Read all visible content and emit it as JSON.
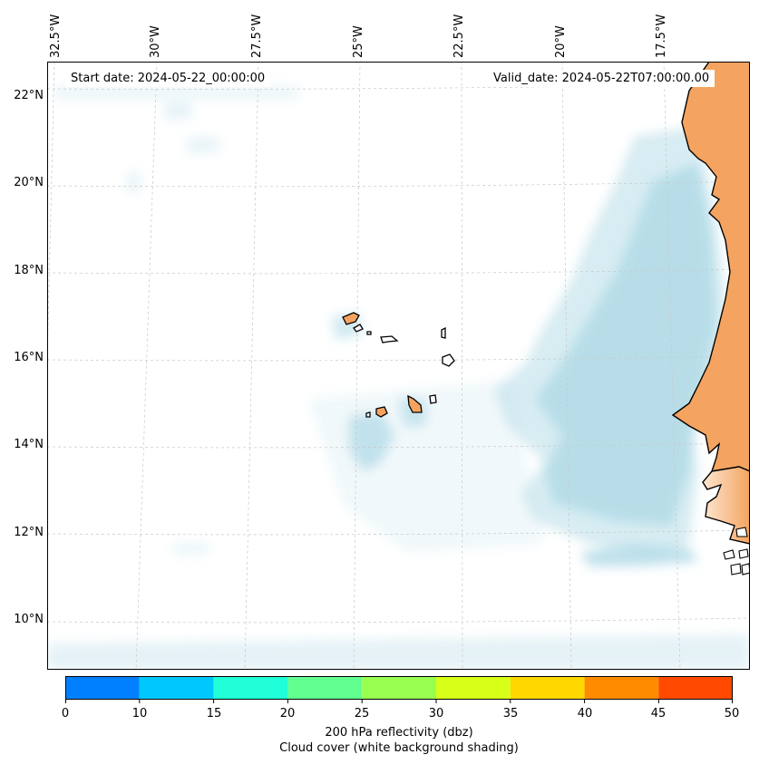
{
  "map": {
    "start_date": "Start date: 2024-05-22_00:00:00",
    "valid_date": "Valid_date: 2024-05-22T07:00:00.00",
    "lon_labels": [
      "32.5°W",
      "30°W",
      "27.5°W",
      "25°W",
      "22.5°W",
      "20°W",
      "17.5°W"
    ],
    "lat_labels": [
      "22°N",
      "20°N",
      "18°N",
      "16°N",
      "14°N",
      "12°N",
      "10°N"
    ],
    "land_color": "#f4a460",
    "cloud_color": "#add8e6"
  },
  "colorbar": {
    "ticks": [
      "0",
      "10",
      "15",
      "20",
      "25",
      "30",
      "35",
      "40",
      "45",
      "50"
    ],
    "colors": [
      "#0080ff",
      "#00c8ff",
      "#20ffd8",
      "#60ff90",
      "#98ff50",
      "#d8ff18",
      "#ffd800",
      "#ff8c00",
      "#ff4a00"
    ],
    "label_line1": "200 hPa reflectivity (dbz)",
    "label_line2": "Cloud cover (white background shading)"
  }
}
